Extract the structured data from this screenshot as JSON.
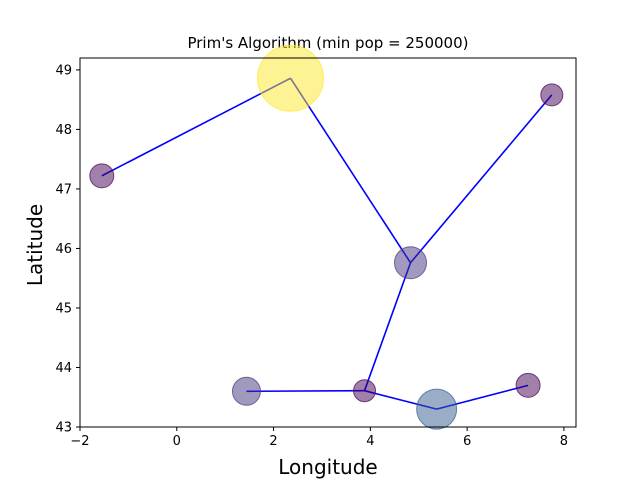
{
  "chart_data": {
    "type": "scatter",
    "title": "Prim's Algorithm (min pop = 250000)",
    "xlabel": "Longitude",
    "ylabel": "Latitude",
    "xlim": [
      -2.0,
      8.25
    ],
    "ylim": [
      43.0,
      49.2
    ],
    "xticks": [
      -2,
      0,
      2,
      4,
      6,
      8
    ],
    "yticks": [
      43,
      44,
      45,
      46,
      47,
      48,
      49
    ],
    "grid": false,
    "legend": "none",
    "edge_color": "#0000ff",
    "marker_alpha": 0.5,
    "points": [
      {
        "x": -1.55,
        "y": 47.22,
        "size": 12,
        "color": "#440154"
      },
      {
        "x": 2.35,
        "y": 48.86,
        "size": 33,
        "color": "#fde725"
      },
      {
        "x": 7.75,
        "y": 48.58,
        "size": 11,
        "color": "#440154"
      },
      {
        "x": 4.83,
        "y": 45.76,
        "size": 16,
        "color": "#46337e"
      },
      {
        "x": 1.44,
        "y": 43.6,
        "size": 14,
        "color": "#46337e"
      },
      {
        "x": 3.88,
        "y": 43.61,
        "size": 11,
        "color": "#440154"
      },
      {
        "x": 5.37,
        "y": 43.3,
        "size": 20,
        "color": "#365c8d"
      },
      {
        "x": 7.26,
        "y": 43.7,
        "size": 12,
        "color": "#440154"
      }
    ],
    "edges": [
      [
        0,
        1
      ],
      [
        1,
        3
      ],
      [
        3,
        2
      ],
      [
        3,
        5
      ],
      [
        5,
        4
      ],
      [
        5,
        6
      ],
      [
        6,
        7
      ]
    ]
  }
}
